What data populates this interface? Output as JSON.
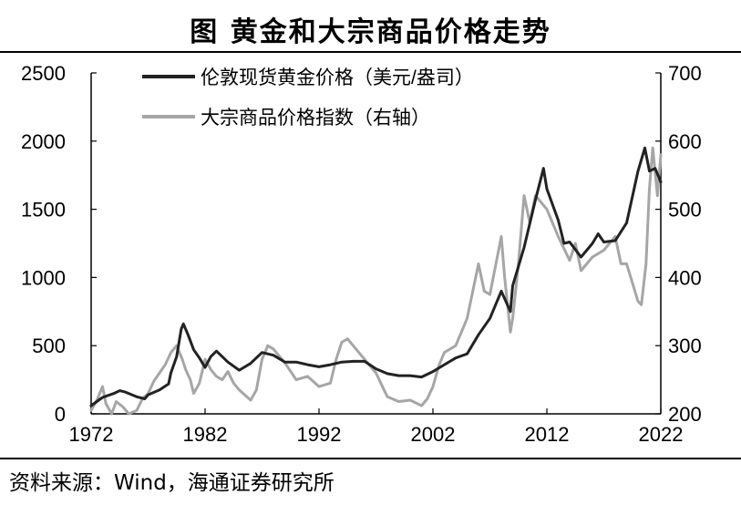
{
  "title": "图    黄金和大宗商品价格走势",
  "source": "资料来源：Wind，海通证券研究所",
  "colors": {
    "gold": "#222222",
    "commodity": "#a6a6a6",
    "axis": "#000000"
  },
  "chart_data": {
    "type": "line",
    "xlim": [
      1972,
      2022
    ],
    "x_ticks": [
      1972,
      1982,
      1992,
      2002,
      2012,
      2022
    ],
    "y_left": {
      "lim": [
        0,
        2500
      ],
      "ticks": [
        0,
        500,
        1000,
        1500,
        2000,
        2500
      ]
    },
    "y_right": {
      "lim": [
        200,
        700
      ],
      "ticks": [
        200,
        300,
        400,
        500,
        600,
        700
      ]
    },
    "grid": false,
    "legend_position": "top-left",
    "series": [
      {
        "name": "伦敦现货黄金价格（美元/盎司）",
        "axis": "left",
        "x": [
          1972,
          1973,
          1974,
          1974.5,
          1975,
          1976,
          1976.7,
          1977,
          1978,
          1978.8,
          1979,
          1979.5,
          1979.9,
          1980.1,
          1980.5,
          1981,
          1981.5,
          1982,
          1982.5,
          1983,
          1983.5,
          1984,
          1985,
          1986,
          1987,
          1988,
          1989,
          1990,
          1991,
          1992,
          1993,
          1994,
          1995,
          1996,
          1997,
          1998,
          1999,
          2000,
          2001,
          2002,
          2003,
          2004,
          2005,
          2006,
          2007,
          2008,
          2008.8,
          2009,
          2010,
          2011,
          2011.7,
          2012,
          2013,
          2013.5,
          2014,
          2015,
          2016,
          2016.5,
          2017,
          2018,
          2019,
          2020,
          2020.6,
          2021,
          2021.5,
          2022
        ],
        "values": [
          60,
          120,
          150,
          170,
          160,
          125,
          110,
          140,
          175,
          220,
          300,
          420,
          620,
          660,
          580,
          470,
          410,
          340,
          420,
          460,
          420,
          380,
          320,
          370,
          450,
          430,
          380,
          380,
          360,
          345,
          360,
          380,
          385,
          385,
          330,
          295,
          280,
          280,
          270,
          310,
          360,
          410,
          440,
          580,
          700,
          900,
          750,
          940,
          1220,
          1570,
          1800,
          1650,
          1420,
          1250,
          1260,
          1150,
          1250,
          1320,
          1260,
          1270,
          1400,
          1780,
          1950,
          1780,
          1800,
          1700
        ]
      },
      {
        "name": "大宗商品价格指数（右轴）",
        "axis": "right",
        "x": [
          1972,
          1972.5,
          1973,
          1973.3,
          1973.8,
          1974.2,
          1974.8,
          1975.3,
          1976,
          1976.5,
          1977,
          1977.5,
          1978,
          1978.5,
          1979,
          1979.5,
          1980,
          1980.3,
          1980.7,
          1981,
          1981.5,
          1982,
          1982.5,
          1983,
          1983.5,
          1984,
          1984.5,
          1985,
          1986,
          1986.5,
          1987,
          1987.5,
          1988,
          1989,
          1990,
          1991,
          1992,
          1993,
          1993.5,
          1994,
          1994.5,
          1995,
          1996,
          1997,
          1998,
          1999,
          2000,
          2001,
          2001.5,
          2002,
          2002.5,
          2003,
          2004,
          2005,
          2006,
          2006.5,
          2007,
          2008,
          2008.3,
          2008.8,
          2009,
          2009.5,
          2010,
          2010.5,
          2011,
          2012,
          2013,
          2014,
          2014.5,
          2015,
          2016,
          2017,
          2018,
          2018.5,
          2019,
          2020,
          2020.3,
          2020.7,
          2021,
          2021.3,
          2021.7,
          2022
        ],
        "values": [
          205,
          220,
          240,
          215,
          200,
          218,
          210,
          200,
          205,
          222,
          230,
          248,
          260,
          272,
          290,
          300,
          280,
          265,
          250,
          230,
          245,
          280,
          265,
          255,
          250,
          262,
          245,
          235,
          220,
          235,
          280,
          300,
          295,
          275,
          250,
          255,
          240,
          245,
          280,
          305,
          310,
          300,
          280,
          260,
          225,
          218,
          220,
          212,
          222,
          240,
          270,
          290,
          300,
          340,
          420,
          380,
          375,
          460,
          400,
          320,
          340,
          420,
          520,
          480,
          520,
          500,
          460,
          425,
          450,
          410,
          430,
          440,
          460,
          420,
          420,
          365,
          360,
          420,
          530,
          590,
          520,
          580
        ]
      }
    ]
  }
}
